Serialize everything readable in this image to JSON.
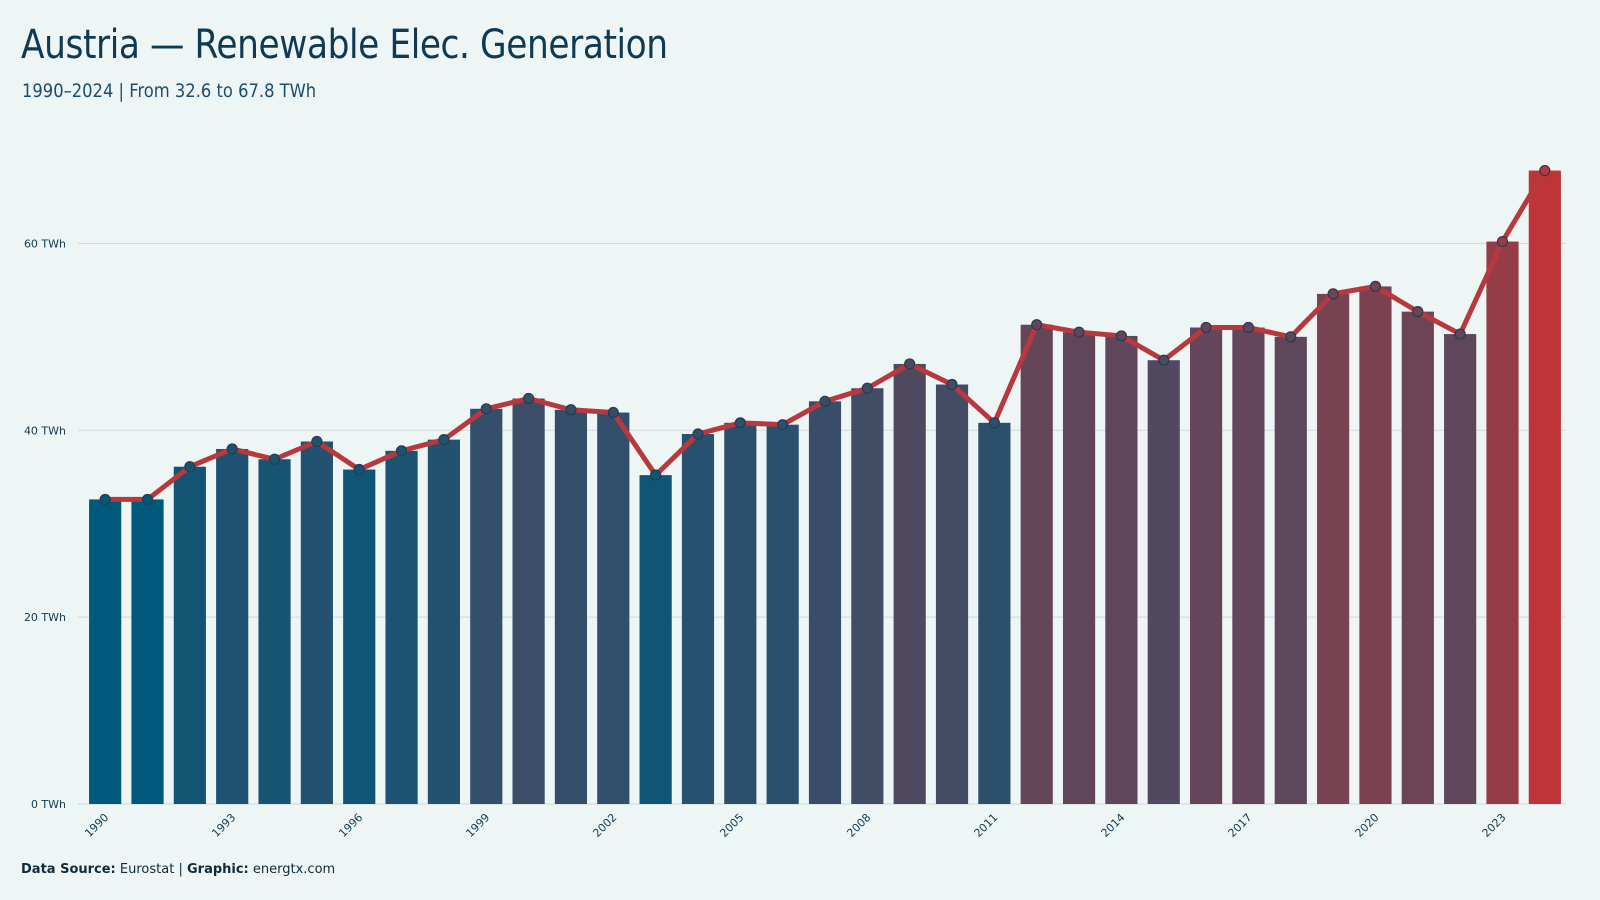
{
  "title": "Austria — Renewable Elec. Generation",
  "subtitle": "1990–2024 | From 32.6 to 67.8 TWh",
  "caption": {
    "source_label": "Data Source:",
    "source_value": "Eurostat",
    "separator": "|",
    "graphic_label": "Graphic:",
    "graphic_value": "energtx.com"
  },
  "colors": {
    "background": "#eef5f5",
    "low": "#00587c",
    "high": "#bf3439",
    "line": "#b8393d",
    "grid": "#cdd9dc",
    "text": "#0f3a52"
  },
  "chart_data": {
    "type": "bar",
    "overlay": "line",
    "categories": [
      "1990",
      "1991",
      "1992",
      "1993",
      "1994",
      "1995",
      "1996",
      "1997",
      "1998",
      "1999",
      "2000",
      "2001",
      "2002",
      "2003",
      "2004",
      "2005",
      "2006",
      "2007",
      "2008",
      "2009",
      "2010",
      "2011",
      "2012",
      "2013",
      "2014",
      "2015",
      "2016",
      "2017",
      "2018",
      "2019",
      "2020",
      "2021",
      "2022",
      "2023",
      "2024"
    ],
    "x_tick_labels": [
      "1990",
      "1993",
      "1996",
      "1999",
      "2002",
      "2005",
      "2008",
      "2011",
      "2014",
      "2017",
      "2020",
      "2023"
    ],
    "values": [
      32.6,
      32.6,
      36.1,
      38.0,
      36.9,
      38.8,
      35.8,
      37.8,
      39.0,
      42.3,
      43.4,
      42.2,
      41.9,
      35.2,
      39.6,
      40.8,
      40.6,
      43.1,
      44.5,
      47.1,
      44.9,
      40.8,
      51.3,
      50.5,
      50.1,
      47.5,
      51.0,
      51.0,
      50.0,
      54.6,
      55.4,
      52.7,
      50.3,
      60.2,
      67.8
    ],
    "ylim": [
      0,
      70
    ],
    "y_ticks": [
      0,
      20,
      40,
      60
    ],
    "y_tick_labels": [
      "0 TWh",
      "20 TWh",
      "40 TWh",
      "60 TWh"
    ],
    "xlabel": "",
    "ylabel": "",
    "grid": true,
    "legend": "none"
  }
}
